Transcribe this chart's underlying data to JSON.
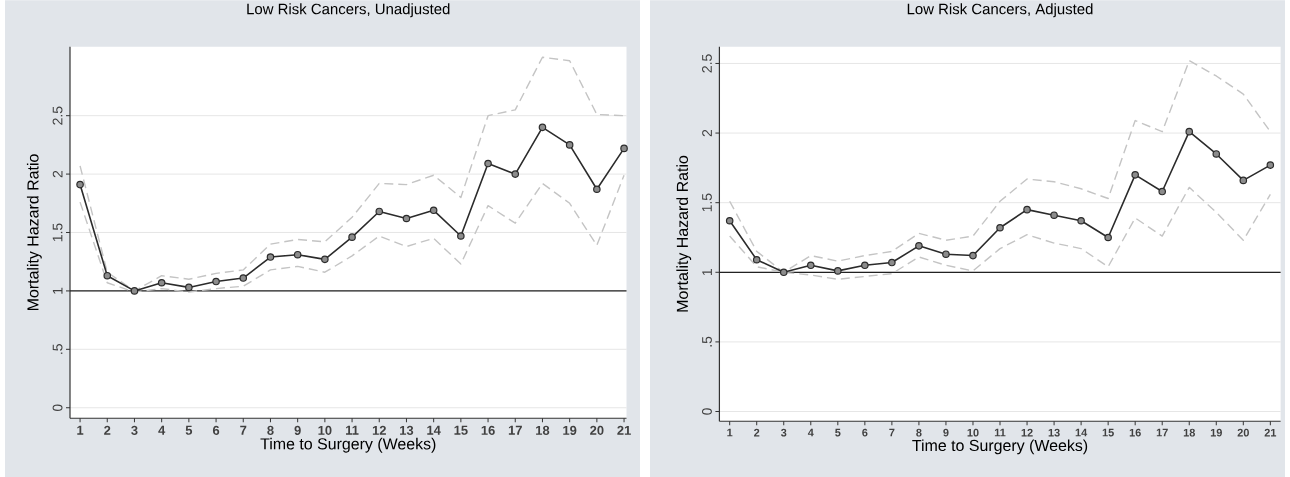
{
  "chart_data": [
    {
      "type": "line",
      "title": "Low Risk Cancers, Unadjusted",
      "xlabel": "Time to Surgery (Weeks)",
      "ylabel": "Mortality Hazard Ratio",
      "x": [
        1,
        2,
        3,
        4,
        5,
        6,
        7,
        8,
        9,
        10,
        11,
        12,
        13,
        14,
        15,
        16,
        17,
        18,
        19,
        20,
        21
      ],
      "series": [
        {
          "color": "#c4c4c4",
          "marker": "none",
          "line_style": "dashed",
          "values": [
            2.07,
            1.16,
            1.0,
            1.13,
            1.1,
            1.15,
            1.18,
            1.4,
            1.44,
            1.42,
            1.63,
            1.92,
            1.91,
            1.99,
            1.8,
            2.5,
            2.55,
            3.0,
            2.97,
            2.51,
            2.5
          ]
        },
        {
          "color": "#c4c4c4",
          "marker": "none",
          "line_style": "dashed",
          "values": [
            1.76,
            1.07,
            0.99,
            1.02,
            0.99,
            1.02,
            1.04,
            1.18,
            1.21,
            1.16,
            1.3,
            1.47,
            1.38,
            1.45,
            1.23,
            1.73,
            1.58,
            1.92,
            1.75,
            1.39,
            1.99
          ]
        },
        {
          "color": "#2b2b2b",
          "marker": "circle",
          "line_style": "solid",
          "values": [
            1.91,
            1.13,
            1.0,
            1.07,
            1.03,
            1.08,
            1.11,
            1.29,
            1.31,
            1.27,
            1.46,
            1.68,
            1.62,
            1.69,
            1.47,
            2.09,
            2.0,
            2.4,
            2.25,
            1.87,
            2.22
          ]
        }
      ],
      "xlim": [
        0.63,
        21.09
      ],
      "ylim": [
        -0.09,
        3.09
      ],
      "xticks": [
        1,
        2,
        3,
        4,
        5,
        6,
        7,
        8,
        9,
        10,
        11,
        12,
        13,
        14,
        15,
        16,
        17,
        18,
        19,
        20,
        21
      ],
      "yticks": [
        0,
        {
          "value": 0.5,
          "label": ".5"
        },
        1,
        1.5,
        2,
        2.5
      ],
      "grid": "y",
      "ref_lines": [
        {
          "axis": "y",
          "value": 1,
          "color": "#222222"
        }
      ]
    },
    {
      "type": "line",
      "title": "Low Risk Cancers, Adjusted",
      "xlabel": "Time to Surgery (Weeks)",
      "ylabel": "Mortality Hazard Ratio",
      "x": [
        1,
        2,
        3,
        4,
        5,
        6,
        7,
        8,
        9,
        10,
        11,
        12,
        13,
        14,
        15,
        16,
        17,
        18,
        19,
        20,
        21
      ],
      "series": [
        {
          "color": "#c4c4c4",
          "marker": "none",
          "line_style": "dashed",
          "values": [
            1.51,
            1.15,
            1.0,
            1.12,
            1.08,
            1.12,
            1.15,
            1.28,
            1.23,
            1.26,
            1.51,
            1.67,
            1.65,
            1.6,
            1.53,
            2.09,
            2.01,
            2.52,
            2.41,
            2.28,
            2.01
          ]
        },
        {
          "color": "#c4c4c4",
          "marker": "none",
          "line_style": "dashed",
          "values": [
            1.26,
            1.04,
            1.0,
            0.98,
            0.95,
            0.97,
            0.99,
            1.11,
            1.05,
            1.01,
            1.17,
            1.27,
            1.21,
            1.17,
            1.04,
            1.39,
            1.26,
            1.61,
            1.43,
            1.23,
            1.56
          ]
        },
        {
          "color": "#2b2b2b",
          "marker": "circle",
          "line_style": "solid",
          "values": [
            1.37,
            1.09,
            1.0,
            1.05,
            1.01,
            1.05,
            1.07,
            1.19,
            1.13,
            1.12,
            1.32,
            1.45,
            1.41,
            1.37,
            1.25,
            1.7,
            1.58,
            2.01,
            1.85,
            1.66,
            1.77
          ]
        }
      ],
      "xlim": [
        0.62,
        21.38
      ],
      "ylim": [
        -0.07,
        2.62
      ],
      "xticks": [
        1,
        2,
        3,
        4,
        5,
        6,
        7,
        8,
        9,
        10,
        11,
        12,
        13,
        14,
        15,
        16,
        17,
        18,
        19,
        20,
        21
      ],
      "yticks": [
        0,
        {
          "value": 0.5,
          "label": ".5"
        },
        1,
        1.5,
        2,
        2.5
      ],
      "grid": "y",
      "ref_lines": [
        {
          "axis": "y",
          "value": 1,
          "color": "#222222"
        }
      ]
    }
  ]
}
